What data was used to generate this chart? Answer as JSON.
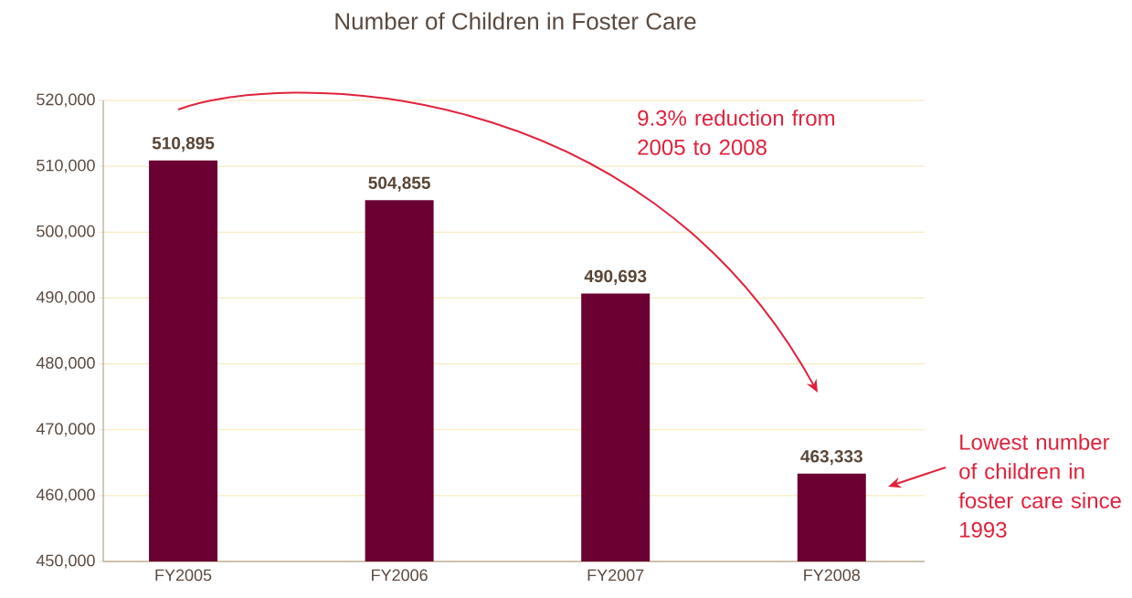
{
  "chart_data": {
    "type": "bar",
    "title": "Number of Children in Foster Care",
    "categories": [
      "FY2005",
      "FY2006",
      "FY2007",
      "FY2008"
    ],
    "values": [
      510895,
      504855,
      490693,
      463333
    ],
    "value_labels": [
      "510,895",
      "504,855",
      "490,693",
      "463,333"
    ],
    "color": "#6b0032",
    "ylim": [
      450000,
      520000
    ],
    "yticks": [
      {
        "value": 450000,
        "label": "450,000"
      },
      {
        "value": 460000,
        "label": "460,000"
      },
      {
        "value": 470000,
        "label": "470,000"
      },
      {
        "value": 480000,
        "label": "480,000"
      },
      {
        "value": 490000,
        "label": "490,000"
      },
      {
        "value": 500000,
        "label": "500,000"
      },
      {
        "value": 510000,
        "label": "510,000"
      },
      {
        "value": 520000,
        "label": "520,000"
      }
    ],
    "grid": "y",
    "annotations": [
      "9.3% reduction from 2005 to 2008",
      "Lowest number of children in foster care since 1993"
    ]
  }
}
